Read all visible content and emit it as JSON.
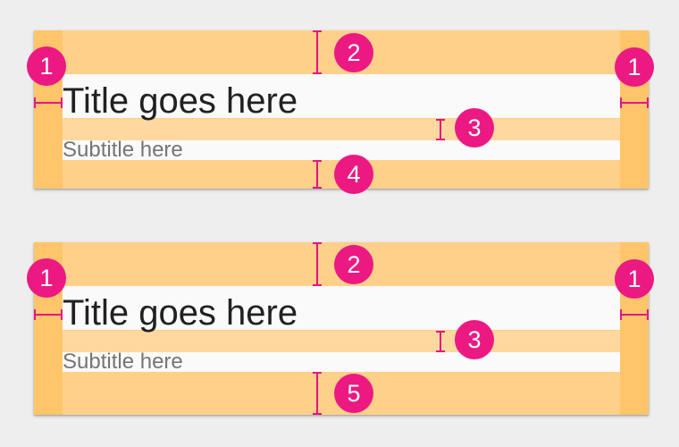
{
  "cards": [
    {
      "title": "Title goes here",
      "subtitle": "Subtitle here",
      "callouts": [
        "1",
        "2",
        "1",
        "3",
        "4"
      ]
    },
    {
      "title": "Title goes here",
      "subtitle": "Subtitle here",
      "callouts": [
        "1",
        "2",
        "1",
        "3",
        "5"
      ]
    }
  ],
  "colors": {
    "background": "#eeeeee",
    "keyline_region": "#ffd08a",
    "text_region": "#fafafa",
    "callout": "#ec1983"
  }
}
